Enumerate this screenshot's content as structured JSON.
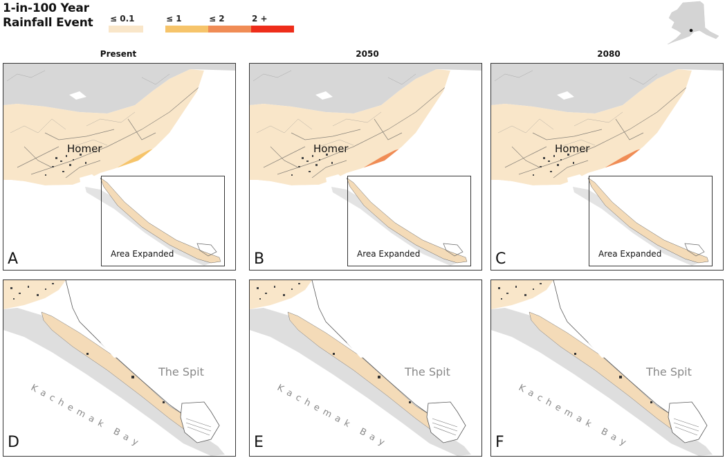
{
  "legend": {
    "title_line1": "1-in-100 Year",
    "title_line2": "Rainfall Event",
    "items": [
      {
        "label": "≤ 0.1",
        "color": "#f9e6c9"
      },
      {
        "label": "≤ 1",
        "color": "#f6c46a"
      },
      {
        "label": "≤ 2",
        "color": "#f08c55"
      },
      {
        "label": "2 +",
        "color": "#ee2d1a"
      }
    ]
  },
  "columns": [
    "Present",
    "2050",
    "2080"
  ],
  "panels": {
    "top": [
      {
        "letter": "A",
        "town": "Homer",
        "box_label": "Area Expanded"
      },
      {
        "letter": "B",
        "town": "Homer",
        "box_label": "Area Expanded"
      },
      {
        "letter": "C",
        "town": "Homer",
        "box_label": "Area Expanded"
      }
    ],
    "bottom": [
      {
        "letter": "D",
        "spit": "The Spit",
        "bay": "Kachemak Bay"
      },
      {
        "letter": "E",
        "spit": "The Spit",
        "bay": "Kachemak Bay"
      },
      {
        "letter": "F",
        "spit": "The Spit",
        "bay": "Kachemak Bay"
      }
    ]
  },
  "colors": {
    "land_grey": "#d7d7d7",
    "flood_pale": "#f9e6c9",
    "water_white": "#ffffff"
  }
}
